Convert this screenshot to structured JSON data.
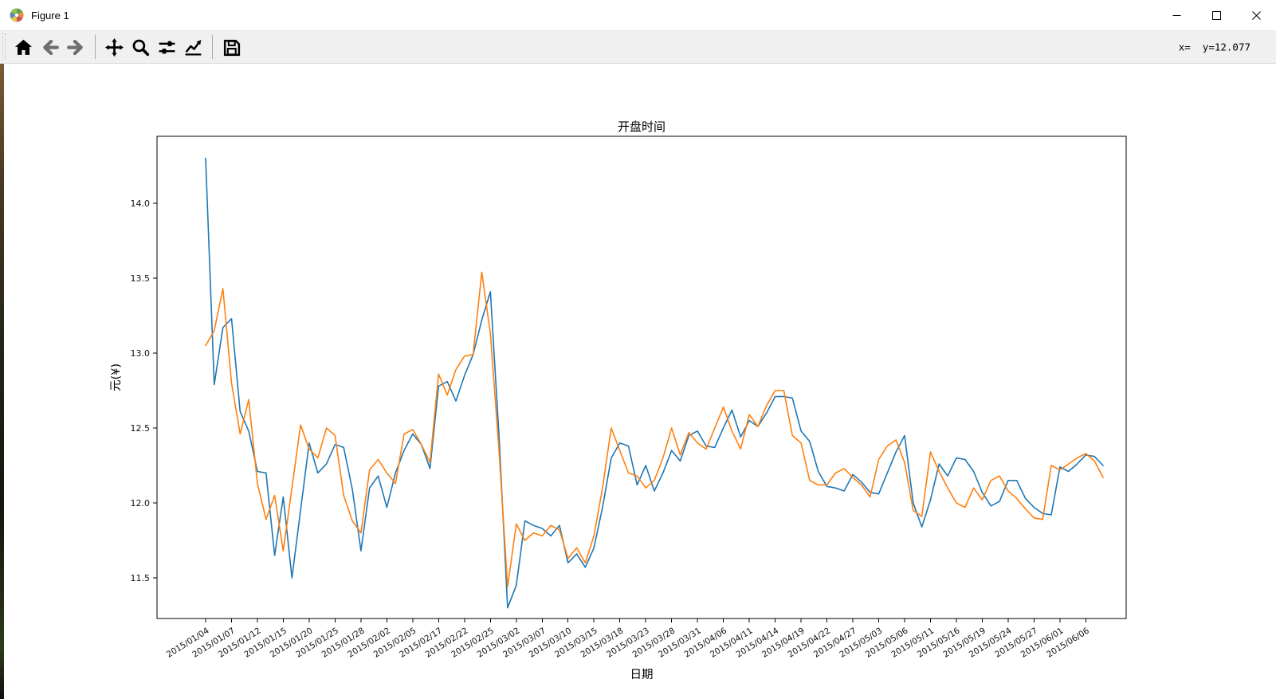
{
  "window": {
    "title": "Figure 1"
  },
  "toolbar": {
    "groups": [
      [
        {
          "name": "home",
          "icon": "home-icon"
        },
        {
          "name": "back",
          "icon": "arrow-left-icon"
        },
        {
          "name": "forward",
          "icon": "arrow-right-icon"
        }
      ],
      [
        {
          "name": "pan",
          "icon": "move-icon"
        },
        {
          "name": "zoom-to-rect",
          "icon": "magnifier-icon"
        },
        {
          "name": "configure-subplots",
          "icon": "sliders-icon"
        },
        {
          "name": "edit-parameters",
          "icon": "line-chart-icon"
        }
      ],
      [
        {
          "name": "save-figure",
          "icon": "floppy-icon"
        }
      ]
    ],
    "status_text": "x=  y=12.077"
  },
  "chart_data": {
    "type": "line",
    "title": "开盘时间",
    "xlabel": "日期",
    "ylabel": "元(¥)",
    "grid": false,
    "legend": "none",
    "ylim": [
      11.23,
      14.45
    ],
    "yticks": [
      11.5,
      12.0,
      12.5,
      13.0,
      13.5,
      14.0
    ],
    "xtick_every_n_points": 3,
    "xtick_labels": [
      "2015/01/04",
      "2015/01/07",
      "2015/01/12",
      "2015/01/15",
      "2015/01/20",
      "2015/01/25",
      "2015/01/28",
      "2015/02/02",
      "2015/02/05",
      "2015/02/17",
      "2015/02/22",
      "2015/02/25",
      "2015/03/02",
      "2015/03/07",
      "2015/03/10",
      "2015/03/15",
      "2015/03/18",
      "2015/03/23",
      "2015/03/28",
      "2015/03/31",
      "2015/04/06",
      "2015/04/11",
      "2015/04/14",
      "2015/04/19",
      "2015/04/22",
      "2015/04/27",
      "2015/05/03",
      "2015/05/06",
      "2015/05/11",
      "2015/05/16",
      "2015/05/19",
      "2015/05/24",
      "2015/05/27",
      "2015/06/01",
      "2015/06/06"
    ],
    "series": [
      {
        "name": "series-1-blue",
        "color": "#1f77b4",
        "values": [
          14.3,
          12.79,
          13.17,
          13.23,
          12.61,
          12.48,
          12.21,
          12.2,
          11.65,
          12.04,
          11.5,
          11.95,
          12.4,
          12.2,
          12.26,
          12.39,
          12.37,
          12.09,
          11.68,
          12.1,
          12.18,
          11.97,
          12.2,
          12.35,
          12.46,
          12.39,
          12.23,
          12.78,
          12.81,
          12.68,
          12.85,
          12.99,
          13.22,
          13.41,
          12.45,
          11.3,
          11.45,
          11.88,
          11.85,
          11.83,
          11.78,
          11.85,
          11.6,
          11.66,
          11.57,
          11.7,
          11.97,
          12.3,
          12.4,
          12.38,
          12.12,
          12.25,
          12.08,
          12.2,
          12.35,
          12.28,
          12.45,
          12.48,
          12.38,
          12.37,
          12.5,
          12.62,
          12.44,
          12.55,
          12.51,
          12.6,
          12.71,
          12.71,
          12.7,
          12.48,
          12.41,
          12.21,
          12.11,
          12.1,
          12.08,
          12.19,
          12.14,
          12.07,
          12.06,
          12.2,
          12.34,
          12.45,
          12.0,
          11.84,
          12.02,
          12.26,
          12.18,
          12.3,
          12.29,
          12.21,
          12.07,
          11.98,
          12.01,
          12.15,
          12.15,
          12.03,
          11.97,
          11.93,
          11.92,
          12.24,
          12.21,
          12.26,
          12.32,
          12.31,
          12.25
        ]
      },
      {
        "name": "series-2-orange",
        "color": "#ff7f0e",
        "values": [
          13.05,
          13.15,
          13.43,
          12.8,
          12.46,
          12.69,
          12.13,
          11.89,
          12.05,
          11.68,
          12.1,
          12.52,
          12.36,
          12.3,
          12.5,
          12.45,
          12.05,
          11.88,
          11.8,
          12.22,
          12.29,
          12.2,
          12.13,
          12.46,
          12.49,
          12.39,
          12.27,
          12.86,
          12.72,
          12.89,
          12.98,
          12.99,
          13.54,
          13.13,
          12.35,
          11.44,
          11.86,
          11.75,
          11.8,
          11.78,
          11.85,
          11.82,
          11.63,
          11.7,
          11.6,
          11.78,
          12.1,
          12.5,
          12.35,
          12.2,
          12.18,
          12.1,
          12.15,
          12.3,
          12.5,
          12.32,
          12.47,
          12.4,
          12.36,
          12.5,
          12.64,
          12.48,
          12.36,
          12.59,
          12.51,
          12.65,
          12.75,
          12.75,
          12.45,
          12.4,
          12.15,
          12.12,
          12.12,
          12.2,
          12.23,
          12.17,
          12.12,
          12.04,
          12.29,
          12.38,
          12.42,
          12.27,
          11.95,
          11.91,
          12.34,
          12.21,
          12.1,
          12.0,
          11.97,
          12.1,
          12.02,
          12.15,
          12.18,
          12.08,
          12.03,
          11.96,
          11.9,
          11.89,
          12.25,
          12.22,
          12.26,
          12.3,
          12.33,
          12.28,
          12.17
        ]
      }
    ]
  }
}
